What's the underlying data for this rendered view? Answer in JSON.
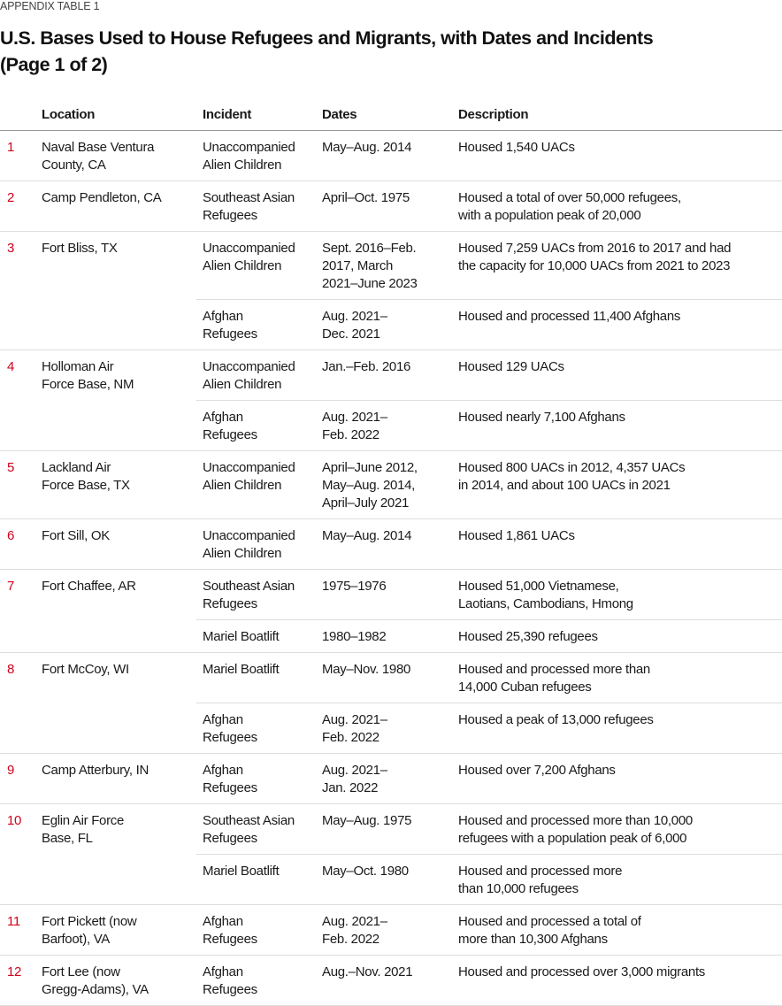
{
  "appendix_label": "APPENDIX TABLE 1",
  "title_line1": "U.S. Bases Used to House Refugees and Migrants, with Dates and Incidents",
  "title_line2": "(Page 1 of 2)",
  "accent_color": "#d0021b",
  "columns": {
    "location": "Location",
    "incident": "Incident",
    "dates": "Dates",
    "description": "Description"
  },
  "rows": [
    {
      "num": "1",
      "location": [
        "Naval Base Ventura",
        "County, CA"
      ],
      "entries": [
        {
          "incident": [
            "Unaccompanied",
            "Alien Children"
          ],
          "dates": [
            "May–Aug. 2014"
          ],
          "description": [
            "Housed 1,540 UACs"
          ]
        }
      ]
    },
    {
      "num": "2",
      "location": [
        "Camp Pendleton, CA"
      ],
      "entries": [
        {
          "incident": [
            "Southeast Asian",
            "Refugees"
          ],
          "dates": [
            "April–Oct. 1975"
          ],
          "description": [
            "Housed a total of over 50,000 refugees,",
            "with a population peak of 20,000"
          ]
        }
      ]
    },
    {
      "num": "3",
      "location": [
        "Fort Bliss, TX"
      ],
      "entries": [
        {
          "incident": [
            "Unaccompanied",
            "Alien Children"
          ],
          "dates": [
            "Sept. 2016–Feb.",
            "2017, March",
            "2021–June 2023"
          ],
          "description": [
            "Housed 7,259 UACs from 2016 to 2017 and had",
            "the capacity for 10,000 UACs from 2021 to 2023"
          ]
        },
        {
          "incident": [
            "Afghan",
            "Refugees"
          ],
          "dates": [
            "Aug. 2021–",
            "Dec. 2021"
          ],
          "description": [
            "Housed and processed 11,400 Afghans"
          ]
        }
      ]
    },
    {
      "num": "4",
      "location": [
        "Holloman Air",
        "Force Base, NM"
      ],
      "entries": [
        {
          "incident": [
            "Unaccompanied",
            "Alien Children"
          ],
          "dates": [
            "Jan.–Feb. 2016"
          ],
          "description": [
            "Housed 129 UACs"
          ]
        },
        {
          "incident": [
            "Afghan",
            "Refugees"
          ],
          "dates": [
            "Aug. 2021–",
            "Feb. 2022"
          ],
          "description": [
            "Housed nearly 7,100 Afghans"
          ]
        }
      ]
    },
    {
      "num": "5",
      "location": [
        "Lackland Air",
        "Force Base, TX"
      ],
      "entries": [
        {
          "incident": [
            "Unaccompanied",
            "Alien Children"
          ],
          "dates": [
            "April–June 2012,",
            "May–Aug. 2014,",
            "April–July 2021"
          ],
          "description": [
            "Housed 800 UACs in 2012, 4,357 UACs",
            "in 2014, and about 100 UACs in 2021"
          ]
        }
      ]
    },
    {
      "num": "6",
      "location": [
        "Fort Sill, OK"
      ],
      "entries": [
        {
          "incident": [
            "Unaccompanied",
            "Alien Children"
          ],
          "dates": [
            "May–Aug. 2014"
          ],
          "description": [
            "Housed 1,861 UACs"
          ]
        }
      ]
    },
    {
      "num": "7",
      "location": [
        "Fort Chaffee, AR"
      ],
      "entries": [
        {
          "incident": [
            "Southeast Asian",
            "Refugees"
          ],
          "dates": [
            "1975–1976"
          ],
          "description": [
            "Housed 51,000 Vietnamese,",
            "Laotians, Cambodians, Hmong"
          ]
        },
        {
          "incident": [
            "Mariel Boatlift"
          ],
          "dates": [
            "1980–1982"
          ],
          "description": [
            "Housed 25,390 refugees"
          ]
        }
      ]
    },
    {
      "num": "8",
      "location": [
        "Fort McCoy, WI"
      ],
      "entries": [
        {
          "incident": [
            "Mariel Boatlift"
          ],
          "dates": [
            "May–Nov. 1980"
          ],
          "description": [
            "Housed and processed more than",
            "14,000 Cuban refugees"
          ]
        },
        {
          "incident": [
            "Afghan",
            "Refugees"
          ],
          "dates": [
            "Aug. 2021–",
            "Feb. 2022"
          ],
          "description": [
            "Housed a peak of 13,000 refugees"
          ]
        }
      ]
    },
    {
      "num": "9",
      "location": [
        "Camp Atterbury, IN"
      ],
      "entries": [
        {
          "incident": [
            "Afghan",
            "Refugees"
          ],
          "dates": [
            "Aug. 2021–",
            "Jan. 2022"
          ],
          "description": [
            "Housed over 7,200 Afghans"
          ]
        }
      ]
    },
    {
      "num": "10",
      "location": [
        "Eglin Air Force",
        "Base, FL"
      ],
      "entries": [
        {
          "incident": [
            "Southeast Asian",
            "Refugees"
          ],
          "dates": [
            "May–Aug. 1975"
          ],
          "description": [
            "Housed and processed more than 10,000",
            "refugees with a population peak of 6,000"
          ]
        },
        {
          "incident": [
            "Mariel Boatlift"
          ],
          "dates": [
            "May–Oct. 1980"
          ],
          "description": [
            "Housed and processed more",
            "than 10,000 refugees"
          ]
        }
      ]
    },
    {
      "num": "11",
      "location": [
        "Fort Pickett (now",
        "Barfoot), VA"
      ],
      "entries": [
        {
          "incident": [
            "Afghan",
            "Refugees"
          ],
          "dates": [
            "Aug. 2021–",
            "Feb. 2022"
          ],
          "description": [
            "Housed and processed a total of",
            "more than 10,300 Afghans"
          ]
        }
      ]
    },
    {
      "num": "12",
      "location": [
        "Fort Lee (now",
        "Gregg-Adams), VA"
      ],
      "entries": [
        {
          "incident": [
            "Afghan",
            "Refugees"
          ],
          "dates": [
            "Aug.–Nov. 2021"
          ],
          "description": [
            "Housed and processed over 3,000 migrants"
          ]
        }
      ]
    }
  ]
}
